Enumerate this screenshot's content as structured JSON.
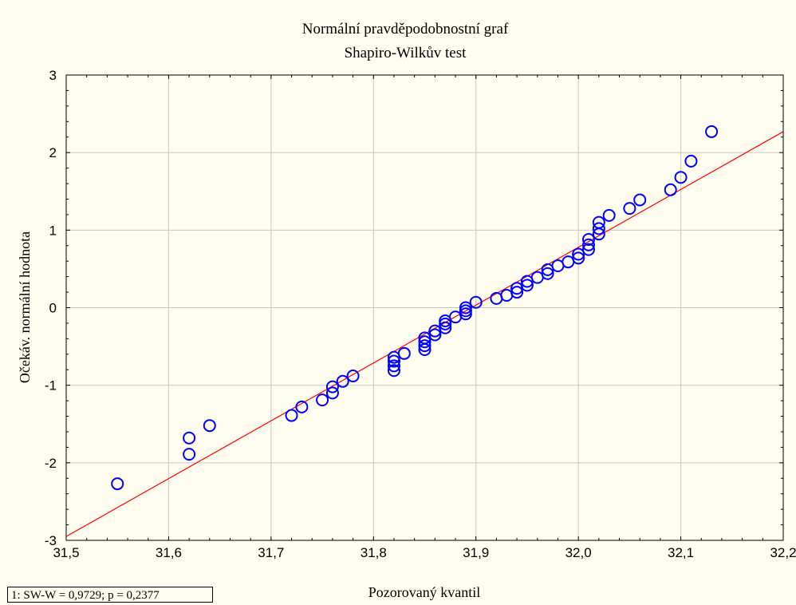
{
  "chart_data": {
    "type": "scatter",
    "title": "Normální pravděpodobnostní graf",
    "subtitle": "Shapiro-Wilkův test",
    "xlabel": "Pozorovaný kvantil",
    "ylabel": "Očekáv. normální hodnota",
    "xlim": [
      31.5,
      32.2
    ],
    "ylim": [
      -3,
      3
    ],
    "xticks": [
      "31,5",
      "31,6",
      "31,7",
      "31,8",
      "31,9",
      "32,0",
      "32,1",
      "32,2"
    ],
    "yticks": [
      "-3",
      "-2",
      "-1",
      "0",
      "1",
      "2",
      "3"
    ],
    "grid": true,
    "reference_line": {
      "x": [
        31.5,
        32.2
      ],
      "y": [
        -2.95,
        2.27
      ]
    },
    "points": [
      [
        31.55,
        -2.27
      ],
      [
        31.62,
        -1.89
      ],
      [
        31.62,
        -1.68
      ],
      [
        31.64,
        -1.52
      ],
      [
        31.72,
        -1.39
      ],
      [
        31.73,
        -1.28
      ],
      [
        31.75,
        -1.19
      ],
      [
        31.76,
        -1.1
      ],
      [
        31.76,
        -1.02
      ],
      [
        31.77,
        -0.95
      ],
      [
        31.78,
        -0.88
      ],
      [
        31.82,
        -0.81
      ],
      [
        31.82,
        -0.75
      ],
      [
        31.82,
        -0.69
      ],
      [
        31.82,
        -0.64
      ],
      [
        31.83,
        -0.59
      ],
      [
        31.85,
        -0.54
      ],
      [
        31.85,
        -0.49
      ],
      [
        31.85,
        -0.44
      ],
      [
        31.85,
        -0.39
      ],
      [
        31.86,
        -0.35
      ],
      [
        31.86,
        -0.3
      ],
      [
        31.87,
        -0.26
      ],
      [
        31.87,
        -0.21
      ],
      [
        31.87,
        -0.17
      ],
      [
        31.88,
        -0.12
      ],
      [
        31.89,
        -0.08
      ],
      [
        31.89,
        -0.04
      ],
      [
        31.89,
        0.0
      ],
      [
        31.9,
        0.07
      ],
      [
        31.92,
        0.12
      ],
      [
        31.93,
        0.16
      ],
      [
        31.94,
        0.2
      ],
      [
        31.94,
        0.25
      ],
      [
        31.95,
        0.29
      ],
      [
        31.95,
        0.34
      ],
      [
        31.96,
        0.39
      ],
      [
        31.97,
        0.44
      ],
      [
        31.97,
        0.49
      ],
      [
        31.98,
        0.54
      ],
      [
        31.99,
        0.59
      ],
      [
        32.0,
        0.64
      ],
      [
        32.0,
        0.69
      ],
      [
        32.01,
        0.75
      ],
      [
        32.01,
        0.81
      ],
      [
        32.01,
        0.88
      ],
      [
        32.02,
        0.95
      ],
      [
        32.02,
        1.02
      ],
      [
        32.02,
        1.1
      ],
      [
        32.03,
        1.19
      ],
      [
        32.05,
        1.28
      ],
      [
        32.06,
        1.39
      ],
      [
        32.09,
        1.52
      ],
      [
        32.1,
        1.68
      ],
      [
        32.11,
        1.89
      ],
      [
        32.13,
        2.27
      ]
    ],
    "point_color": "#0000ff",
    "line_color": "#ff0000"
  },
  "stats_label": "1:  SW-W = 0,9729; p = 0,2377"
}
